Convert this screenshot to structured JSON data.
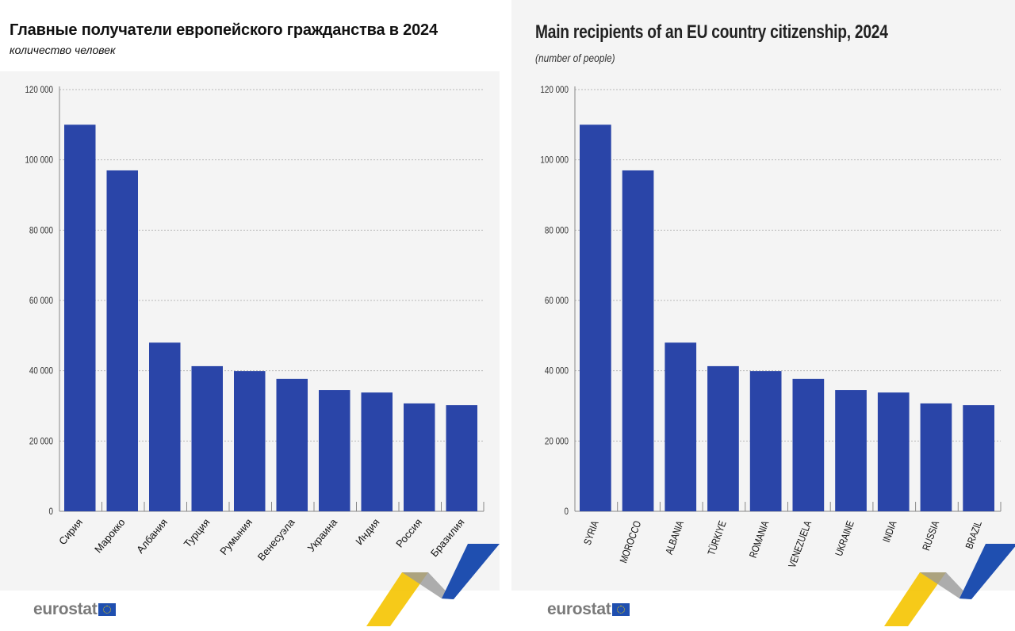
{
  "chart_data": [
    {
      "type": "bar",
      "title": "Главные получатели европейского гражданства в 2024",
      "subtitle": "количество человек",
      "categories": [
        "Сирия",
        "Марокко",
        "Албания",
        "Турция",
        "Румыния",
        "Венесуэла",
        "Украина",
        "Индия",
        "Россия",
        "Бразилия"
      ],
      "values": [
        110000,
        97000,
        48000,
        41300,
        39900,
        37700,
        34500,
        33800,
        30700,
        30200
      ],
      "ylim": [
        0,
        120000
      ],
      "yticks": [
        0,
        20000,
        40000,
        60000,
        80000,
        100000,
        120000
      ],
      "ytick_labels": [
        "0",
        "20 000",
        "40 000",
        "60 000",
        "80 000",
        "100 000",
        "120 000"
      ],
      "grid": true,
      "bar_color": "#2a45a8"
    },
    {
      "type": "bar",
      "title": "Main recipients of an EU country citizenship, 2024",
      "subtitle": "(number of people)",
      "categories": [
        "SYRIA",
        "MOROCCO",
        "ALBANIA",
        "TÜRKIYE",
        "ROMANIA",
        "VENEZUELA",
        "UKRAINE",
        "INDIA",
        "RUSSIA",
        "BRAZIL"
      ],
      "values": [
        110000,
        97000,
        48000,
        41300,
        39900,
        37700,
        34500,
        33800,
        30700,
        30200
      ],
      "ylim": [
        0,
        120000
      ],
      "yticks": [
        0,
        20000,
        40000,
        60000,
        80000,
        100000,
        120000
      ],
      "ytick_labels": [
        "0",
        "20 000",
        "40 000",
        "60 000",
        "80 000",
        "100 000",
        "120 000"
      ],
      "grid": true,
      "bar_color": "#2a45a8"
    }
  ],
  "branding": {
    "logo": "eurostat",
    "colors": {
      "yellow": "#f5c400",
      "blue": "#1f4fb0",
      "grey": "#9a9a9a"
    }
  }
}
